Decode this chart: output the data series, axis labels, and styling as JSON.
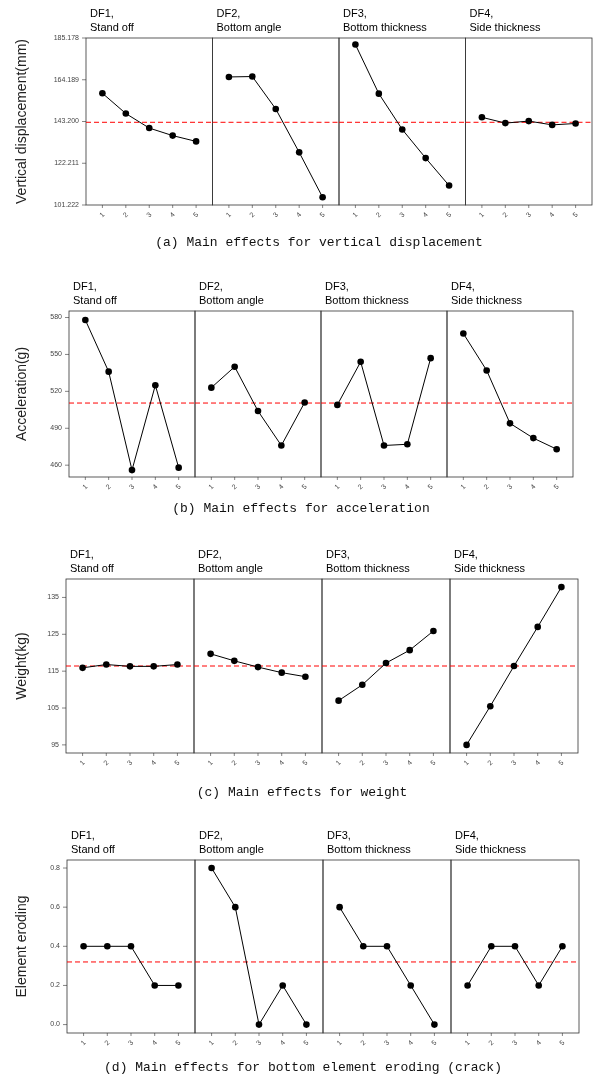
{
  "chart_data": [
    {
      "type": "line",
      "title": "DF1,",
      "subtitle": "Stand off",
      "ylabel": "Vertical displacement(mm)",
      "categories": [
        "1",
        "2",
        "3",
        "4",
        "5"
      ],
      "values": [
        157.4,
        147.2,
        139.9,
        136.1,
        133.2
      ],
      "color": "#000000",
      "marker": "circle",
      "ylim": [
        101.222,
        185.178
      ],
      "yticks": [
        101.222,
        122.211,
        {
          "value": 143.2,
          "label": "143.200"
        },
        164.189,
        185.178
      ],
      "ref_lines": [
        {
          "axis": "y",
          "value": 142.8,
          "color": "#ff0000",
          "line_style": "dashed"
        }
      ],
      "annotations": [
        "(a) Main effects for vertical displacement"
      ]
    },
    {
      "type": "line",
      "title": "DF2,",
      "subtitle": "Bottom angle",
      "categories": [
        "1",
        "2",
        "3",
        "4",
        "5"
      ],
      "values": [
        165.6,
        165.8,
        149.5,
        127.7,
        105.1
      ],
      "color": "#000000",
      "marker": "circle",
      "ylim": [
        101.222,
        185.178
      ],
      "tick_labels": "x",
      "ref_lines": [
        {
          "axis": "y",
          "value": 142.8,
          "color": "#ff0000",
          "line_style": "dashed"
        }
      ]
    },
    {
      "type": "line",
      "title": "DF3,",
      "subtitle": "Bottom thickness",
      "categories": [
        "1",
        "2",
        "3",
        "4",
        "5"
      ],
      "values": [
        181.9,
        157.2,
        139.2,
        124.8,
        111.0
      ],
      "color": "#000000",
      "marker": "circle",
      "ylim": [
        101.222,
        185.178
      ],
      "tick_labels": "x",
      "ref_lines": [
        {
          "axis": "y",
          "value": 142.8,
          "color": "#ff0000",
          "line_style": "dashed"
        }
      ]
    },
    {
      "type": "line",
      "title": "DF4,",
      "subtitle": "Side thickness",
      "categories": [
        "1",
        "2",
        "3",
        "4",
        "5"
      ],
      "values": [
        145.3,
        142.4,
        143.4,
        141.5,
        142.2
      ],
      "color": "#000000",
      "marker": "circle",
      "ylim": [
        101.222,
        185.178
      ],
      "tick_labels": "x",
      "ref_lines": [
        {
          "axis": "y",
          "value": 142.8,
          "color": "#ff0000",
          "line_style": "dashed"
        }
      ]
    },
    {
      "type": "line",
      "title": "DF1,",
      "subtitle": "Stand off",
      "ylabel": "Acceleration(g)",
      "categories": [
        "1",
        "2",
        "3",
        "4",
        "5"
      ],
      "values": [
        578,
        536,
        456,
        525,
        458
      ],
      "color": "#000000",
      "marker": "circle",
      "ylim": [
        450.4,
        585.3
      ],
      "yticks": [
        460,
        490,
        520,
        550,
        580
      ],
      "ref_lines": [
        {
          "axis": "y",
          "value": 510.5,
          "color": "#ff0000",
          "line_style": "dashed"
        }
      ],
      "annotations": [
        "(b) Main effects for acceleration"
      ]
    },
    {
      "type": "line",
      "title": "DF2,",
      "subtitle": "Bottom angle",
      "categories": [
        "1",
        "2",
        "3",
        "4",
        "5"
      ],
      "values": [
        523,
        540,
        504,
        476,
        511
      ],
      "color": "#000000",
      "marker": "circle",
      "ylim": [
        450.4,
        585.3
      ],
      "tick_labels": "x",
      "ref_lines": [
        {
          "axis": "y",
          "value": 510.5,
          "color": "#ff0000",
          "line_style": "dashed"
        }
      ]
    },
    {
      "type": "line",
      "title": "DF3,",
      "subtitle": "Bottom thickness",
      "categories": [
        "1",
        "2",
        "3",
        "4",
        "5"
      ],
      "values": [
        509,
        544,
        476,
        477,
        547
      ],
      "color": "#000000",
      "marker": "circle",
      "ylim": [
        450.4,
        585.3
      ],
      "tick_labels": "x",
      "ref_lines": [
        {
          "axis": "y",
          "value": 510.5,
          "color": "#ff0000",
          "line_style": "dashed"
        }
      ]
    },
    {
      "type": "line",
      "title": "DF4,",
      "subtitle": "Side thickness",
      "categories": [
        "1",
        "2",
        "3",
        "4",
        "5"
      ],
      "values": [
        567,
        537,
        494,
        482,
        473
      ],
      "color": "#000000",
      "marker": "circle",
      "ylim": [
        450.4,
        585.3
      ],
      "tick_labels": "x",
      "ref_lines": [
        {
          "axis": "y",
          "value": 510.5,
          "color": "#ff0000",
          "line_style": "dashed"
        }
      ]
    },
    {
      "type": "line",
      "title": "DF1,",
      "subtitle": "Stand off",
      "ylabel": "Weight(kg)",
      "categories": [
        "1",
        "2",
        "3",
        "4",
        "5"
      ],
      "values": [
        115.9,
        116.8,
        116.3,
        116.3,
        116.8
      ],
      "color": "#000000",
      "marker": "circle",
      "ylim": [
        92.8,
        140.0
      ],
      "yticks": [
        95,
        105,
        115,
        125,
        135
      ],
      "ref_lines": [
        {
          "axis": "y",
          "value": 116.4,
          "color": "#ff0000",
          "line_style": "dashed"
        }
      ],
      "annotations": [
        "(c) Main effects for weight"
      ]
    },
    {
      "type": "line",
      "title": "DF2,",
      "subtitle": "Bottom angle",
      "categories": [
        "1",
        "2",
        "3",
        "4",
        "5"
      ],
      "values": [
        119.7,
        117.8,
        116.1,
        114.6,
        113.5
      ],
      "color": "#000000",
      "marker": "circle",
      "ylim": [
        92.8,
        140.0
      ],
      "tick_labels": "x",
      "ref_lines": [
        {
          "axis": "y",
          "value": 116.4,
          "color": "#ff0000",
          "line_style": "dashed"
        }
      ]
    },
    {
      "type": "line",
      "title": "DF3,",
      "subtitle": "Bottom thickness",
      "categories": [
        "1",
        "2",
        "3",
        "4",
        "5"
      ],
      "values": [
        107.0,
        111.3,
        117.2,
        120.7,
        125.9
      ],
      "color": "#000000",
      "marker": "circle",
      "ylim": [
        92.8,
        140.0
      ],
      "tick_labels": "x",
      "ref_lines": [
        {
          "axis": "y",
          "value": 116.4,
          "color": "#ff0000",
          "line_style": "dashed"
        }
      ]
    },
    {
      "type": "line",
      "title": "DF4,",
      "subtitle": "Side thickness",
      "categories": [
        "1",
        "2",
        "3",
        "4",
        "5"
      ],
      "values": [
        95.0,
        105.5,
        116.4,
        127.0,
        137.8
      ],
      "color": "#000000",
      "marker": "circle",
      "ylim": [
        92.8,
        140.0
      ],
      "tick_labels": "x",
      "ref_lines": [
        {
          "axis": "y",
          "value": 116.4,
          "color": "#ff0000",
          "line_style": "dashed"
        }
      ]
    },
    {
      "type": "line",
      "title": "DF1,",
      "subtitle": "Stand off",
      "ylabel": "Element eroding",
      "categories": [
        "1",
        "2",
        "3",
        "4",
        "5"
      ],
      "values": [
        0.4,
        0.4,
        0.4,
        0.2,
        0.2
      ],
      "color": "#000000",
      "marker": "circle",
      "ylim": [
        -0.043,
        0.841
      ],
      "yticks": [
        {
          "value": 0,
          "label": "0.0"
        },
        0.2,
        0.4,
        0.6,
        0.8
      ],
      "ref_lines": [
        {
          "axis": "y",
          "value": 0.32,
          "color": "#ff0000",
          "line_style": "dashed"
        }
      ],
      "annotations": [
        "(d) Main effects for bottom element eroding (crack)"
      ]
    },
    {
      "type": "line",
      "title": "DF2,",
      "subtitle": "Bottom angle",
      "categories": [
        "1",
        "2",
        "3",
        "4",
        "5"
      ],
      "values": [
        0.8,
        0.6,
        0,
        0.2,
        0
      ],
      "color": "#000000",
      "marker": "circle",
      "ylim": [
        -0.043,
        0.841
      ],
      "tick_labels": "x",
      "ref_lines": [
        {
          "axis": "y",
          "value": 0.32,
          "color": "#ff0000",
          "line_style": "dashed"
        }
      ]
    },
    {
      "type": "line",
      "title": "DF3,",
      "subtitle": "Bottom thickness",
      "categories": [
        "1",
        "2",
        "3",
        "4",
        "5"
      ],
      "values": [
        0.6,
        0.4,
        0.4,
        0.2,
        0
      ],
      "color": "#000000",
      "marker": "circle",
      "ylim": [
        -0.043,
        0.841
      ],
      "tick_labels": "x",
      "ref_lines": [
        {
          "axis": "y",
          "value": 0.32,
          "color": "#ff0000",
          "line_style": "dashed"
        }
      ]
    },
    {
      "type": "line",
      "title": "DF4,",
      "subtitle": "Side thickness",
      "categories": [
        "1",
        "2",
        "3",
        "4",
        "5"
      ],
      "values": [
        0.2,
        0.4,
        0.4,
        0.2,
        0.4
      ],
      "color": "#000000",
      "marker": "circle",
      "ylim": [
        -0.043,
        0.841
      ],
      "tick_labels": "x",
      "ref_lines": [
        {
          "axis": "y",
          "value": 0.32,
          "color": "#ff0000",
          "line_style": "dashed"
        }
      ]
    }
  ]
}
